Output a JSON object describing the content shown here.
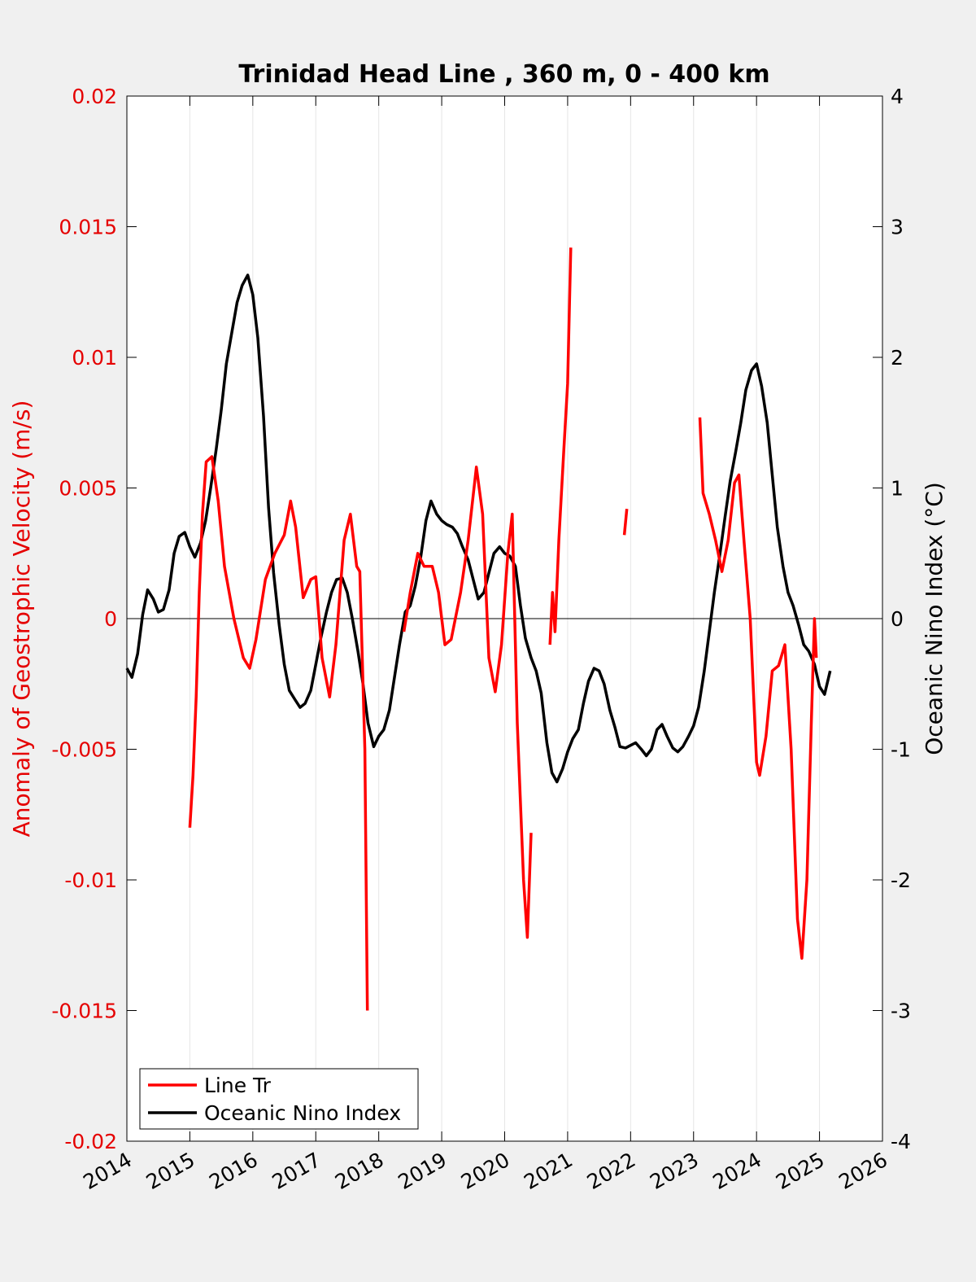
{
  "chart_data": {
    "type": "line",
    "title": "Trinidad Head Line , 360 m, 0 - 400 km",
    "ylabel_left": "Anomaly of Geostrophic Velocity (m/s)",
    "ylabel_right": "Oceanic Nino Index (°C)",
    "xlim": [
      2014,
      2026
    ],
    "ylim_left": [
      -0.02,
      0.02
    ],
    "ylim_right": [
      -4,
      4
    ],
    "x_ticks": [
      "2014",
      "2015",
      "2016",
      "2017",
      "2018",
      "2019",
      "2020",
      "2021",
      "2022",
      "2023",
      "2024",
      "2025",
      "2026"
    ],
    "y_ticks_left": [
      "0.02",
      "0.015",
      "0.01",
      "0.005",
      "0",
      "-0.005",
      "-0.01",
      "-0.015",
      "-0.02"
    ],
    "y_ticks_right": [
      "4",
      "3",
      "2",
      "1",
      "0",
      "-1",
      "-2",
      "-3",
      "-4"
    ],
    "grid": "vertical",
    "legend_position": "bottom-left",
    "colors": {
      "line_tr": "#ff0000",
      "oni": "#000000",
      "axis_left": "#e50000"
    },
    "series": [
      {
        "name": "Line Tr",
        "axis": "left",
        "segments": [
          [
            [
              2015.0,
              -0.008
            ],
            [
              2015.05,
              -0.006
            ],
            [
              2015.1,
              -0.003
            ],
            [
              2015.15,
              0.001
            ],
            [
              2015.2,
              0.004
            ],
            [
              2015.26,
              0.006
            ],
            [
              2015.35,
              0.0062
            ],
            [
              2015.45,
              0.0045
            ],
            [
              2015.55,
              0.002
            ],
            [
              2015.7,
              0.0
            ],
            [
              2015.85,
              -0.0015
            ],
            [
              2015.95,
              -0.0019
            ],
            [
              2016.05,
              -0.0008
            ],
            [
              2016.2,
              0.0015
            ],
            [
              2016.35,
              0.0025
            ],
            [
              2016.5,
              0.0032
            ],
            [
              2016.6,
              0.0045
            ],
            [
              2016.68,
              0.0035
            ],
            [
              2016.8,
              0.0008
            ],
            [
              2016.92,
              0.0015
            ],
            [
              2017.0,
              0.0016
            ],
            [
              2017.1,
              -0.0015
            ],
            [
              2017.22,
              -0.003
            ],
            [
              2017.32,
              -0.001
            ],
            [
              2017.45,
              0.003
            ],
            [
              2017.55,
              0.004
            ],
            [
              2017.65,
              0.002
            ],
            [
              2017.7,
              0.0018
            ],
            [
              2017.78,
              -0.005
            ],
            [
              2017.82,
              -0.015
            ]
          ],
          [
            [
              2018.4,
              -0.0005
            ],
            [
              2018.5,
              0.001
            ],
            [
              2018.62,
              0.0025
            ],
            [
              2018.72,
              0.002
            ],
            [
              2018.85,
              0.002
            ],
            [
              2018.95,
              0.001
            ],
            [
              2019.05,
              -0.001
            ],
            [
              2019.15,
              -0.0008
            ],
            [
              2019.3,
              0.001
            ],
            [
              2019.42,
              0.003
            ],
            [
              2019.55,
              0.0058
            ],
            [
              2019.65,
              0.004
            ],
            [
              2019.75,
              -0.0015
            ],
            [
              2019.85,
              -0.0028
            ],
            [
              2019.95,
              -0.001
            ],
            [
              2020.05,
              0.0025
            ],
            [
              2020.12,
              0.004
            ],
            [
              2020.2,
              -0.004
            ],
            [
              2020.3,
              -0.01
            ],
            [
              2020.36,
              -0.0122
            ],
            [
              2020.42,
              -0.0082
            ]
          ],
          [
            [
              2020.72,
              -0.001
            ],
            [
              2020.76,
              0.001
            ],
            [
              2020.8,
              -0.0005
            ],
            [
              2020.86,
              0.003
            ],
            [
              2020.94,
              0.0065
            ],
            [
              2021.0,
              0.009
            ],
            [
              2021.05,
              0.0142
            ]
          ],
          [
            [
              2021.9,
              0.0032
            ],
            [
              2021.94,
              0.0042
            ]
          ],
          [
            [
              2023.1,
              0.0077
            ],
            [
              2023.15,
              0.0048
            ],
            [
              2023.25,
              0.004
            ],
            [
              2023.35,
              0.003
            ],
            [
              2023.45,
              0.0018
            ],
            [
              2023.55,
              0.003
            ],
            [
              2023.65,
              0.0052
            ],
            [
              2023.72,
              0.0055
            ],
            [
              2023.8,
              0.003
            ],
            [
              2023.9,
              0.0
            ],
            [
              2024.0,
              -0.0055
            ],
            [
              2024.05,
              -0.006
            ],
            [
              2024.15,
              -0.0045
            ],
            [
              2024.25,
              -0.002
            ],
            [
              2024.35,
              -0.0018
            ],
            [
              2024.45,
              -0.001
            ],
            [
              2024.55,
              -0.005
            ],
            [
              2024.65,
              -0.0115
            ],
            [
              2024.72,
              -0.013
            ],
            [
              2024.8,
              -0.01
            ],
            [
              2024.87,
              -0.004
            ],
            [
              2024.92,
              0.0
            ],
            [
              2024.95,
              -0.0015
            ]
          ]
        ]
      },
      {
        "name": "Oceanic Nino Index",
        "axis": "right",
        "segments": [
          [
            [
              2014.0,
              -0.38
            ],
            [
              2014.08,
              -0.45
            ],
            [
              2014.17,
              -0.27
            ],
            [
              2014.25,
              0.03
            ],
            [
              2014.33,
              0.22
            ],
            [
              2014.42,
              0.15
            ],
            [
              2014.5,
              0.05
            ],
            [
              2014.58,
              0.07
            ],
            [
              2014.67,
              0.22
            ],
            [
              2014.75,
              0.5
            ],
            [
              2014.83,
              0.63
            ],
            [
              2014.92,
              0.66
            ],
            [
              2015.0,
              0.55
            ],
            [
              2015.08,
              0.47
            ],
            [
              2015.17,
              0.58
            ],
            [
              2015.25,
              0.75
            ],
            [
              2015.33,
              1.0
            ],
            [
              2015.42,
              1.3
            ],
            [
              2015.5,
              1.6
            ],
            [
              2015.58,
              1.95
            ],
            [
              2015.67,
              2.2
            ],
            [
              2015.75,
              2.42
            ],
            [
              2015.83,
              2.55
            ],
            [
              2015.92,
              2.63
            ],
            [
              2016.0,
              2.48
            ],
            [
              2016.08,
              2.15
            ],
            [
              2016.17,
              1.55
            ],
            [
              2016.25,
              0.85
            ],
            [
              2016.33,
              0.35
            ],
            [
              2016.42,
              -0.05
            ],
            [
              2016.5,
              -0.35
            ],
            [
              2016.58,
              -0.55
            ],
            [
              2016.67,
              -0.62
            ],
            [
              2016.75,
              -0.68
            ],
            [
              2016.83,
              -0.65
            ],
            [
              2016.92,
              -0.55
            ],
            [
              2017.0,
              -0.35
            ],
            [
              2017.08,
              -0.15
            ],
            [
              2017.17,
              0.05
            ],
            [
              2017.25,
              0.2
            ],
            [
              2017.33,
              0.3
            ],
            [
              2017.42,
              0.31
            ],
            [
              2017.5,
              0.2
            ],
            [
              2017.58,
              0.0
            ],
            [
              2017.67,
              -0.25
            ],
            [
              2017.75,
              -0.5
            ],
            [
              2017.83,
              -0.8
            ],
            [
              2017.92,
              -0.98
            ],
            [
              2018.0,
              -0.9
            ],
            [
              2018.08,
              -0.85
            ],
            [
              2018.17,
              -0.7
            ],
            [
              2018.25,
              -0.45
            ],
            [
              2018.33,
              -0.2
            ],
            [
              2018.42,
              0.05
            ],
            [
              2018.5,
              0.1
            ],
            [
              2018.58,
              0.25
            ],
            [
              2018.67,
              0.48
            ],
            [
              2018.75,
              0.75
            ],
            [
              2018.83,
              0.9
            ],
            [
              2018.92,
              0.8
            ],
            [
              2019.0,
              0.75
            ],
            [
              2019.08,
              0.72
            ],
            [
              2019.17,
              0.7
            ],
            [
              2019.25,
              0.65
            ],
            [
              2019.33,
              0.55
            ],
            [
              2019.42,
              0.45
            ],
            [
              2019.5,
              0.3
            ],
            [
              2019.58,
              0.15
            ],
            [
              2019.67,
              0.2
            ],
            [
              2019.75,
              0.35
            ],
            [
              2019.83,
              0.5
            ],
            [
              2019.92,
              0.55
            ],
            [
              2020.0,
              0.5
            ],
            [
              2020.08,
              0.48
            ],
            [
              2020.17,
              0.4
            ],
            [
              2020.25,
              0.1
            ],
            [
              2020.33,
              -0.15
            ],
            [
              2020.42,
              -0.3
            ],
            [
              2020.5,
              -0.4
            ],
            [
              2020.58,
              -0.57
            ],
            [
              2020.67,
              -0.95
            ],
            [
              2020.75,
              -1.18
            ],
            [
              2020.83,
              -1.25
            ],
            [
              2020.92,
              -1.15
            ],
            [
              2021.0,
              -1.02
            ],
            [
              2021.08,
              -0.92
            ],
            [
              2021.17,
              -0.85
            ],
            [
              2021.25,
              -0.65
            ],
            [
              2021.33,
              -0.48
            ],
            [
              2021.42,
              -0.38
            ],
            [
              2021.5,
              -0.4
            ],
            [
              2021.58,
              -0.5
            ],
            [
              2021.67,
              -0.7
            ],
            [
              2021.75,
              -0.83
            ],
            [
              2021.83,
              -0.98
            ],
            [
              2021.92,
              -0.99
            ],
            [
              2022.0,
              -0.97
            ],
            [
              2022.08,
              -0.95
            ],
            [
              2022.17,
              -1.0
            ],
            [
              2022.25,
              -1.05
            ],
            [
              2022.33,
              -1.0
            ],
            [
              2022.42,
              -0.85
            ],
            [
              2022.5,
              -0.81
            ],
            [
              2022.58,
              -0.9
            ],
            [
              2022.67,
              -0.99
            ],
            [
              2022.75,
              -1.02
            ],
            [
              2022.83,
              -0.98
            ],
            [
              2022.92,
              -0.9
            ],
            [
              2023.0,
              -0.82
            ],
            [
              2023.08,
              -0.68
            ],
            [
              2023.17,
              -0.4
            ],
            [
              2023.25,
              -0.1
            ],
            [
              2023.33,
              0.2
            ],
            [
              2023.42,
              0.5
            ],
            [
              2023.5,
              0.78
            ],
            [
              2023.58,
              1.05
            ],
            [
              2023.67,
              1.28
            ],
            [
              2023.75,
              1.5
            ],
            [
              2023.83,
              1.75
            ],
            [
              2023.92,
              1.9
            ],
            [
              2024.0,
              1.95
            ],
            [
              2024.08,
              1.78
            ],
            [
              2024.17,
              1.5
            ],
            [
              2024.25,
              1.1
            ],
            [
              2024.33,
              0.7
            ],
            [
              2024.42,
              0.4
            ],
            [
              2024.5,
              0.2
            ],
            [
              2024.58,
              0.1
            ],
            [
              2024.67,
              -0.05
            ],
            [
              2024.75,
              -0.2
            ],
            [
              2024.83,
              -0.25
            ],
            [
              2024.92,
              -0.35
            ],
            [
              2025.0,
              -0.52
            ],
            [
              2025.08,
              -0.58
            ],
            [
              2025.17,
              -0.4
            ]
          ]
        ]
      }
    ]
  }
}
